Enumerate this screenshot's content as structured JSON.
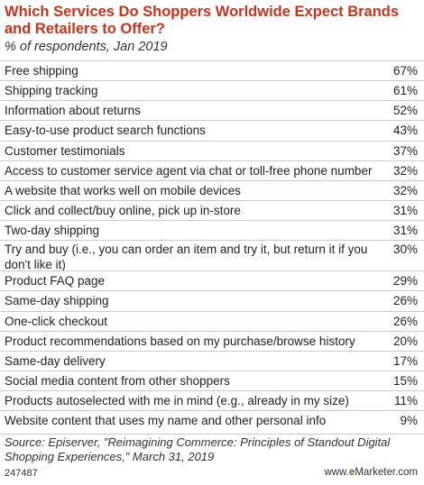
{
  "chart_data": {
    "type": "table",
    "title": "Which Services Do Shoppers Worldwide Expect Brands and Retailers to Offer?",
    "subtitle": "% of respondents, Jan 2019",
    "rows": [
      {
        "label": "Free shipping",
        "value": "67%"
      },
      {
        "label": "Shipping tracking",
        "value": "61%"
      },
      {
        "label": "Information about returns",
        "value": "52%"
      },
      {
        "label": "Easy-to-use product search functions",
        "value": "43%"
      },
      {
        "label": "Customer testimonials",
        "value": "37%"
      },
      {
        "label": "Access to customer service agent via chat or toll-free phone number",
        "value": "32%"
      },
      {
        "label": "A website that works well on mobile devices",
        "value": "32%"
      },
      {
        "label": "Click and collect/buy online, pick up in-store",
        "value": "31%"
      },
      {
        "label": "Two-day shipping",
        "value": "31%"
      },
      {
        "label": "Try and buy (i.e., you can order an item and try it, but return it if you don't like it)",
        "value": "30%"
      },
      {
        "label": "Product FAQ page",
        "value": "29%"
      },
      {
        "label": "Same-day shipping",
        "value": "26%"
      },
      {
        "label": "One-click checkout",
        "value": "26%"
      },
      {
        "label": "Product recommendations based on my purchase/browse history",
        "value": "20%"
      },
      {
        "label": "Same-day delivery",
        "value": "17%"
      },
      {
        "label": "Social media content from other shoppers",
        "value": "15%"
      },
      {
        "label": "Products autoselected with me in mind (e.g., already in my size)",
        "value": "11%"
      },
      {
        "label": "Website content that uses my name and other personal info",
        "value": "9%"
      }
    ],
    "source": "Source: Episerver, \"Reimagining Commerce: Principles of Standout Digital Shopping Experiences,\" March 31, 2019"
  },
  "footer": {
    "chart_id": "247487",
    "brand_prefix": "www.",
    "brand_mark": "e",
    "brand_suffix": "Marketer.com"
  },
  "colors": {
    "title": "#c8331c",
    "rule": "#c9c9c9"
  }
}
